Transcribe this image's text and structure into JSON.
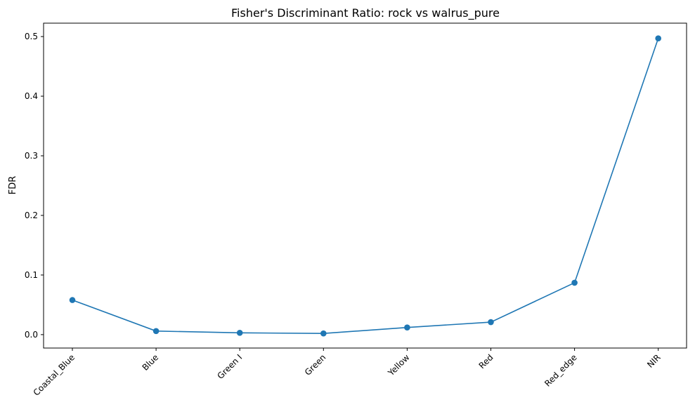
{
  "chart_data": {
    "type": "line",
    "title": "Fisher's Discriminant Ratio: rock vs walrus_pure",
    "xlabel": "",
    "ylabel": "FDR",
    "categories": [
      "Coastal_Blue",
      "Blue",
      "Green I",
      "Green",
      "Yellow",
      "Red",
      "Red_edge",
      "NIR"
    ],
    "series": [
      {
        "values": [
          0.058,
          0.006,
          0.003,
          0.002,
          0.012,
          0.021,
          0.087,
          0.497
        ],
        "color": "#1f77b4"
      }
    ],
    "ylim": [
      -0.0225,
      0.5225
    ],
    "yticks": [
      0.0,
      0.1,
      0.2,
      0.3,
      0.4,
      0.5
    ],
    "ytick_labels": [
      "0.0",
      "0.1",
      "0.2",
      "0.3",
      "0.4",
      "0.5"
    ],
    "grid": false,
    "legend": "none",
    "marker": "circle"
  }
}
